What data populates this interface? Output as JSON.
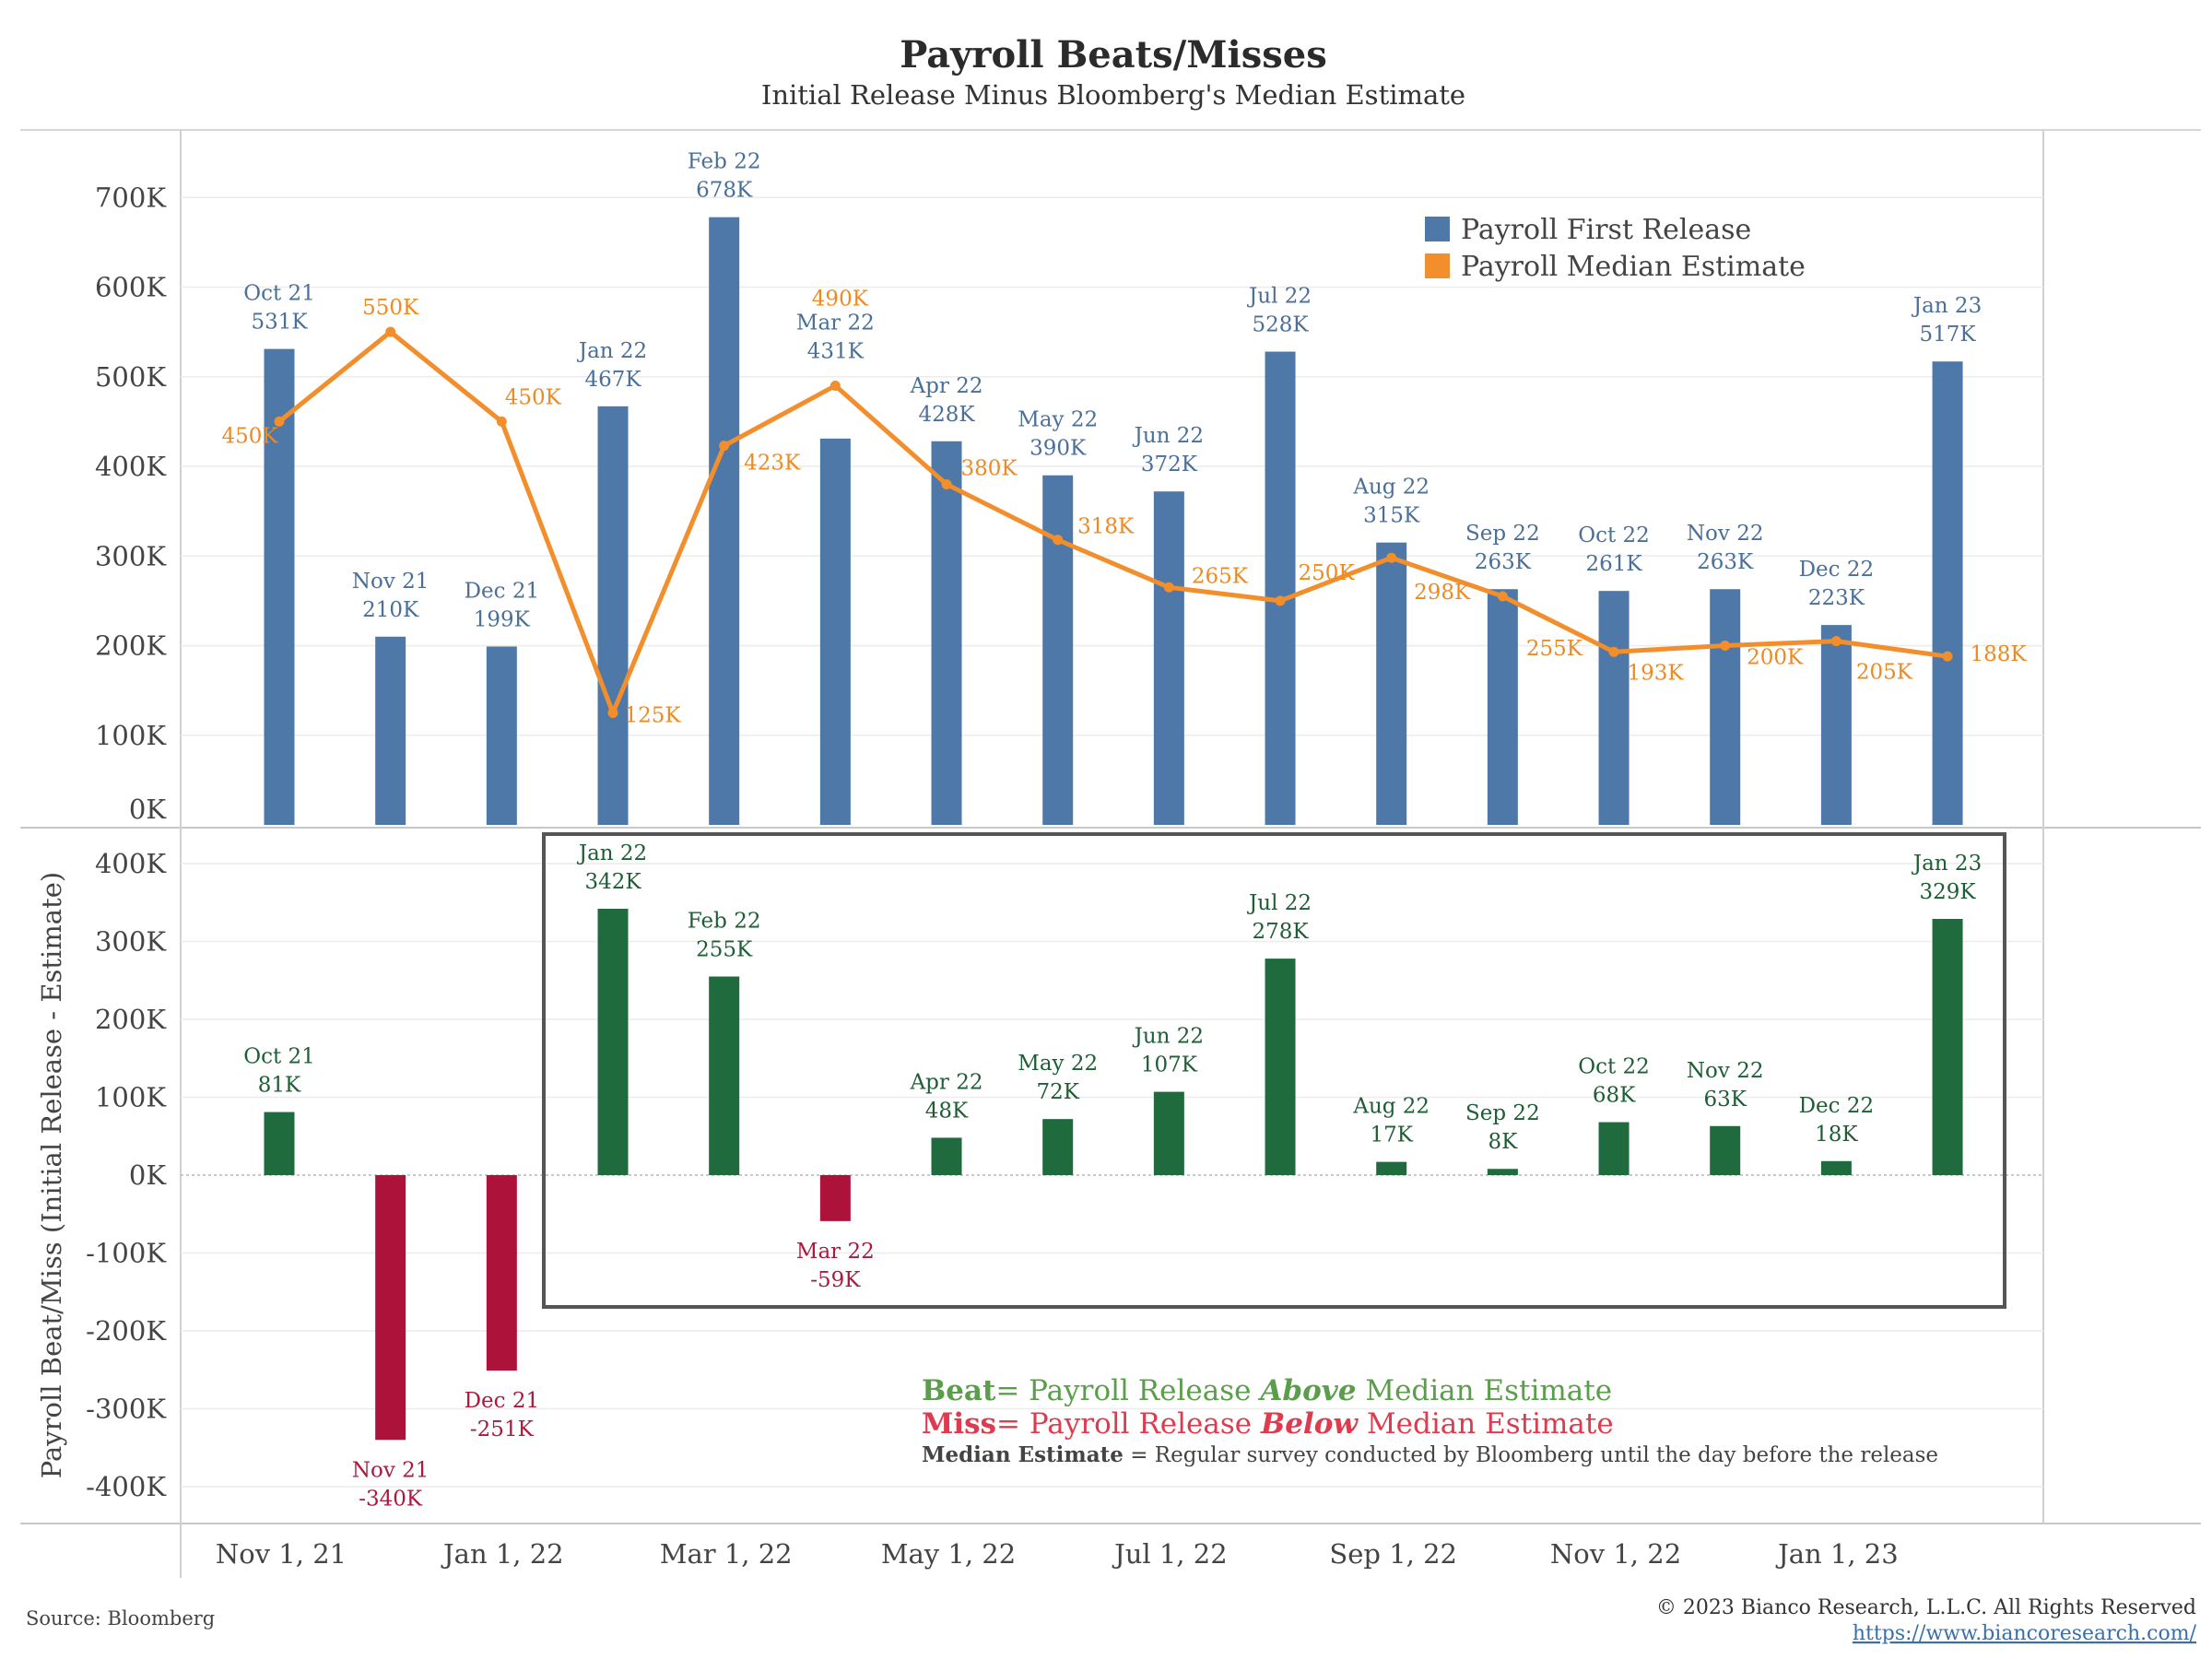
{
  "title": "Payroll Beats/Misses",
  "subtitle": "Initial Release Minus Bloomberg's Median Estimate",
  "source": "Source: Bloomberg",
  "copyright": "© 2023 Bianco Research, L.L.C. All Rights Reserved",
  "url": "https://www.biancoresearch.com/",
  "notes": {
    "beat_word": "Beat",
    "beat_rest1": "= Payroll Release ",
    "beat_emph": "Above",
    "beat_rest2": " Median Estimate",
    "miss_word": "Miss",
    "miss_rest1": "= Payroll Release ",
    "miss_emph": "Below",
    "miss_rest2": " Median Estimate",
    "median_bold": "Median Estimate",
    "median_rest": " = Regular survey conducted by Bloomberg until the day before the release"
  },
  "colors": {
    "release": "#4e78a7",
    "estimate": "#f28e2b",
    "beat": "#1f6b3d",
    "miss": "#ad123a",
    "beat_text": "#5a9e4b",
    "miss_text": "#de3b4e",
    "release_label": "#4a6f99",
    "estimate_label": "#ee8a22",
    "beat_label": "#1e5e35",
    "miss_label": "#ab1a3e"
  },
  "chart_data": [
    {
      "type": "bar",
      "panel": "top",
      "categories": [
        "Oct 21",
        "Nov 21",
        "Dec 21",
        "Jan 22",
        "Feb 22",
        "Mar 22",
        "Apr 22",
        "May 22",
        "Jun 22",
        "Jul 22",
        "Aug 22",
        "Sep 22",
        "Oct 22",
        "Nov 22",
        "Dec 22",
        "Jan 23"
      ],
      "series": [
        {
          "name": "Payroll First Release",
          "type": "bar",
          "values": [
            531,
            210,
            199,
            467,
            678,
            431,
            428,
            390,
            372,
            528,
            315,
            263,
            261,
            263,
            223,
            517
          ]
        },
        {
          "name": "Payroll Median Estimate",
          "type": "line",
          "values": [
            450,
            550,
            450,
            125,
            423,
            490,
            380,
            318,
            265,
            250,
            298,
            255,
            193,
            200,
            205,
            188
          ]
        }
      ],
      "value_labels": [
        "531K",
        "210K",
        "199K",
        "467K",
        "678K",
        "431K",
        "428K",
        "390K",
        "372K",
        "528K",
        "315K",
        "263K",
        "261K",
        "263K",
        "223K",
        "517K"
      ],
      "estimate_labels": [
        "450K",
        "550K",
        "450K",
        "125K",
        "423K",
        "490K",
        "380K",
        "318K",
        "265K",
        "250K",
        "298K",
        "255K",
        "193K",
        "200K",
        "205K",
        "188K"
      ],
      "yticks": [
        "0K",
        "100K",
        "200K",
        "300K",
        "400K",
        "500K",
        "600K",
        "700K"
      ],
      "ylim": [
        0,
        740
      ],
      "legend_position": "top-right",
      "grid": true
    },
    {
      "type": "bar",
      "panel": "bottom",
      "categories": [
        "Oct 21",
        "Nov 21",
        "Dec 21",
        "Jan 22",
        "Feb 22",
        "Mar 22",
        "Apr 22",
        "May 22",
        "Jun 22",
        "Jul 22",
        "Aug 22",
        "Sep 22",
        "Oct 22",
        "Nov 22",
        "Dec 22",
        "Jan 23"
      ],
      "values": [
        81,
        -340,
        -251,
        342,
        255,
        -59,
        48,
        72,
        107,
        278,
        17,
        8,
        68,
        63,
        18,
        329
      ],
      "value_labels": [
        "81K",
        "-340K",
        "-251K",
        "342K",
        "255K",
        "-59K",
        "48K",
        "72K",
        "107K",
        "278K",
        "17K",
        "8K",
        "68K",
        "63K",
        "18K",
        "329K"
      ],
      "ylabel": "Payroll Beat/Miss (Initial Release - Estimate)",
      "yticks": [
        "-400K",
        "-300K",
        "-200K",
        "-100K",
        "0K",
        "100K",
        "200K",
        "300K",
        "400K"
      ],
      "ylim": [
        -440,
        440
      ],
      "grid": true
    }
  ],
  "xaxis": {
    "ticks": [
      "Nov 1, 21",
      "Jan 1, 22",
      "Mar 1, 22",
      "May 1, 22",
      "Jul 1, 22",
      "Sep 1, 22",
      "Nov 1, 22",
      "Jan 1, 23"
    ]
  }
}
